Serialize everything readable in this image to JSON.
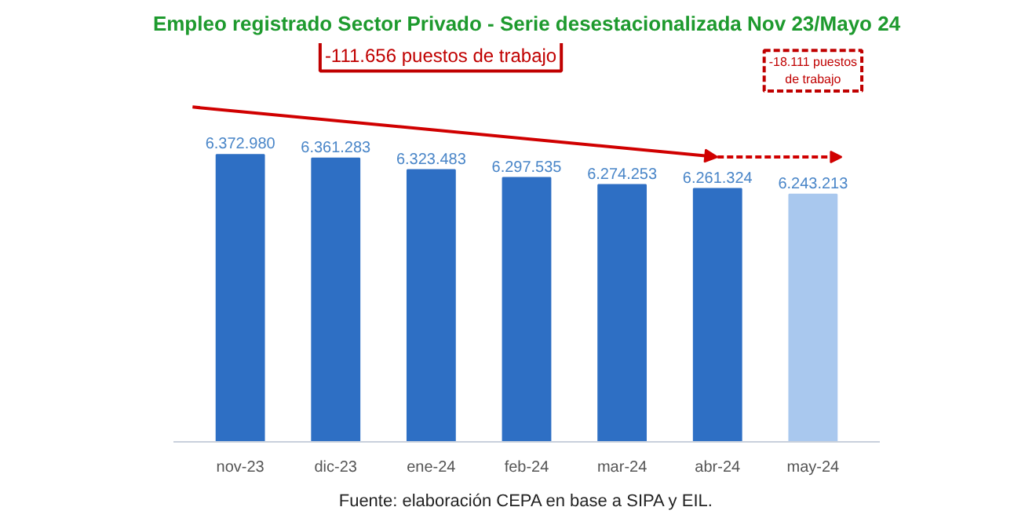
{
  "chart_data": {
    "type": "bar",
    "title": "Empleo registrado Sector Privado - Serie desestacionalizada Nov 23/Mayo 24",
    "categories": [
      "nov-23",
      "dic-23",
      "ene-24",
      "feb-24",
      "mar-24",
      "abr-24",
      "may-24"
    ],
    "values": [
      6372980,
      6361283,
      6323483,
      6297535,
      6274253,
      6261324,
      6243213
    ],
    "value_labels": [
      "6.372.980",
      "6.361.283",
      "6.323.483",
      "6.297.535",
      "6.274.253",
      "6.261.324",
      "6.243.213"
    ],
    "colors": [
      "#2e6fc4",
      "#2e6fc4",
      "#2e6fc4",
      "#2e6fc4",
      "#2e6fc4",
      "#2e6fc4",
      "#a9c8ee"
    ],
    "ylim": [
      5430000,
      6740000
    ],
    "grid": false,
    "annotations": [
      "-111.656 puestos de trabajo",
      "-18.111 puestos\nde trabajo",
      "Fuente: elaboración CEPA en base a SIPA y EIL."
    ]
  }
}
